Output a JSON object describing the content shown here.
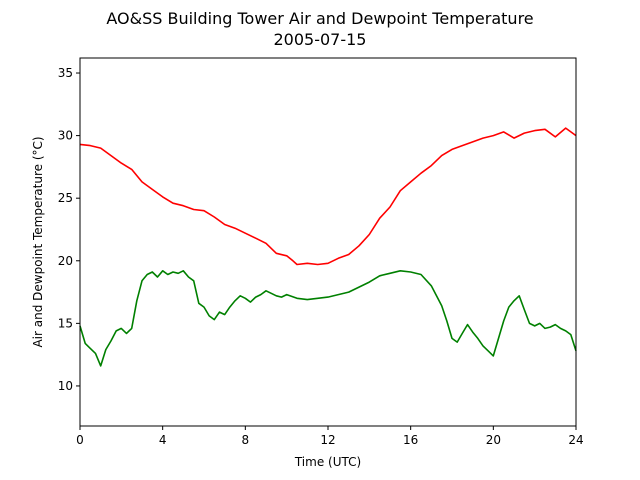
{
  "chart_data": {
    "type": "line",
    "title": "AO&SS Building Tower Air and Dewpoint Temperature",
    "subtitle": "2005-07-15",
    "xlabel": "Time (UTC)",
    "ylabel": "Air and Dewpoint Temperature (°C)",
    "xlim": [
      0,
      24
    ],
    "ylim": [
      6.8,
      36.2
    ],
    "x_ticks": [
      0,
      4,
      8,
      12,
      16,
      20,
      24
    ],
    "y_ticks": [
      10,
      15,
      20,
      25,
      30,
      35
    ],
    "grid": false,
    "legend": "none",
    "series": [
      {
        "color": "#ff0000",
        "x": [
          0,
          0.5,
          1,
          1.5,
          2,
          2.5,
          3,
          3.5,
          4,
          4.5,
          5,
          5.5,
          6,
          6.5,
          7,
          7.5,
          8,
          8.5,
          9,
          9.5,
          10,
          10.3,
          10.5,
          11,
          11.5,
          12,
          12.5,
          13,
          13.5,
          14,
          14.5,
          15,
          15.5,
          16,
          16.5,
          17,
          17.5,
          18,
          18.5,
          19,
          19.5,
          20,
          20.5,
          21,
          21.5,
          22,
          22.5,
          23,
          23.5,
          24
        ],
        "y": [
          29.3,
          29.2,
          29.0,
          28.4,
          27.8,
          27.3,
          26.3,
          25.7,
          25.1,
          24.6,
          24.4,
          24.1,
          24.0,
          23.5,
          22.9,
          22.6,
          22.2,
          21.8,
          21.4,
          20.6,
          20.4,
          20.0,
          19.7,
          19.8,
          19.7,
          19.8,
          20.2,
          20.5,
          21.2,
          22.1,
          23.4,
          24.3,
          25.6,
          26.3,
          27.0,
          27.6,
          28.4,
          28.9,
          29.2,
          29.5,
          29.8,
          30.0,
          30.3,
          29.8,
          30.2,
          30.4,
          30.5,
          29.9,
          30.6,
          30.0
        ]
      },
      {
        "color": "#008000",
        "x": [
          0,
          0.25,
          0.5,
          0.75,
          1,
          1.25,
          1.5,
          1.75,
          2,
          2.25,
          2.5,
          2.75,
          3,
          3.25,
          3.5,
          3.75,
          4,
          4.25,
          4.5,
          4.75,
          5,
          5.25,
          5.5,
          5.75,
          6,
          6.25,
          6.5,
          6.75,
          7,
          7.25,
          7.5,
          7.75,
          8,
          8.25,
          8.5,
          8.75,
          9,
          9.25,
          9.5,
          9.75,
          10,
          10.5,
          11,
          11.5,
          12,
          12.5,
          13,
          13.5,
          14,
          14.5,
          15,
          15.5,
          16,
          16.5,
          17,
          17.25,
          17.5,
          17.75,
          18,
          18.25,
          18.5,
          18.75,
          19,
          19.25,
          19.5,
          19.75,
          20,
          20.25,
          20.5,
          20.75,
          21,
          21.25,
          21.5,
          21.75,
          22,
          22.25,
          22.5,
          22.75,
          23,
          23.25,
          23.5,
          23.75,
          24
        ],
        "y": [
          14.8,
          13.4,
          13.0,
          12.6,
          11.6,
          12.9,
          13.6,
          14.4,
          14.6,
          14.2,
          14.6,
          16.8,
          18.4,
          18.9,
          19.1,
          18.7,
          19.2,
          18.9,
          19.1,
          19.0,
          19.2,
          18.7,
          18.4,
          16.6,
          16.3,
          15.6,
          15.3,
          15.9,
          15.7,
          16.3,
          16.8,
          17.2,
          17.0,
          16.7,
          17.1,
          17.3,
          17.6,
          17.4,
          17.2,
          17.1,
          17.3,
          17.0,
          16.9,
          17.0,
          17.1,
          17.3,
          17.5,
          17.9,
          18.3,
          18.8,
          19.0,
          19.2,
          19.1,
          18.9,
          18.0,
          17.2,
          16.4,
          15.2,
          13.8,
          13.5,
          14.2,
          14.9,
          14.3,
          13.8,
          13.2,
          12.8,
          12.4,
          13.8,
          15.2,
          16.3,
          16.8,
          17.2,
          16.1,
          15.0,
          14.8,
          15.0,
          14.6,
          14.7,
          14.9,
          14.6,
          14.4,
          14.1,
          12.8
        ]
      }
    ]
  }
}
